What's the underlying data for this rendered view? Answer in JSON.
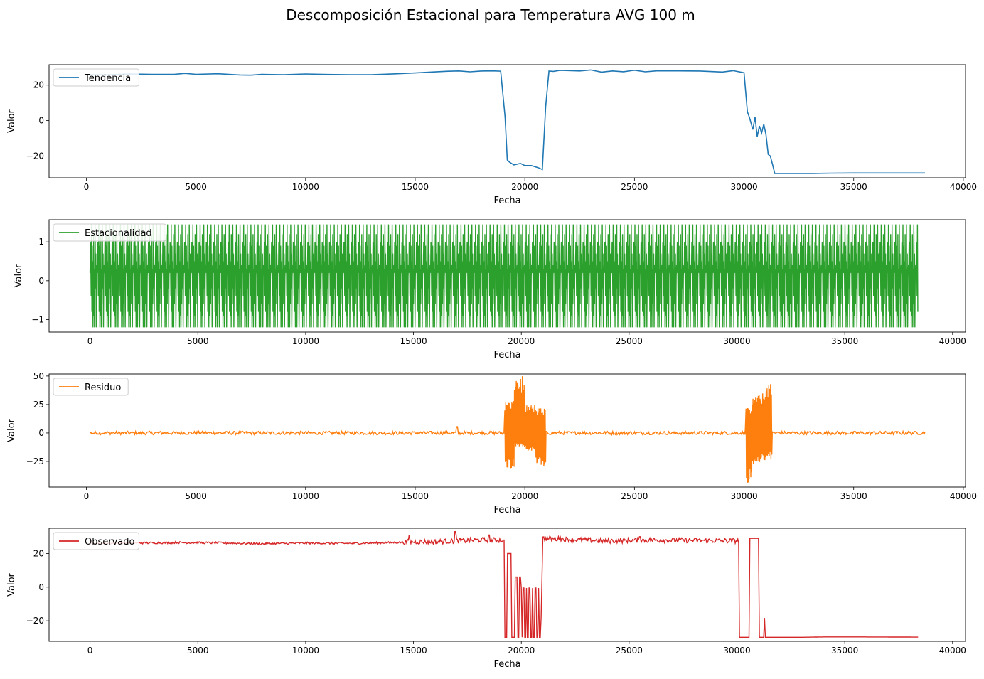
{
  "figure": {
    "title": "Descomposición Estacional para Temperatura AVG 100 m"
  },
  "chart_data": [
    {
      "type": "line",
      "legend": "Tendencia",
      "color": "#1f77b4",
      "kind": "trend",
      "xlabel": "Fecha",
      "ylabel": "Valor",
      "xlim": [
        -1700,
        40100
      ],
      "ylim": [
        -32.2,
        31.5
      ],
      "xticks": [
        0,
        5000,
        10000,
        15000,
        20000,
        25000,
        30000,
        35000,
        40000
      ],
      "xtick_labels": [
        "0",
        "5000",
        "10000",
        "15000",
        "20000",
        "25000",
        "30000",
        "35000",
        "40000"
      ],
      "yticks": [
        20,
        0,
        -20
      ],
      "ytick_labels": [
        "20",
        "0",
        "−20"
      ],
      "legend_position": "upper left",
      "x": [
        168,
        1000,
        2000,
        3000,
        4000,
        4500,
        5000,
        6000,
        7000,
        7500,
        8000,
        9000,
        10000,
        11000,
        12000,
        13000,
        14000,
        15000,
        16000,
        16500,
        17000,
        17500,
        18000,
        18500,
        18900,
        19100,
        19200,
        19300,
        19500,
        19800,
        20000,
        20300,
        20600,
        20800,
        20950,
        21100,
        21300,
        21600,
        22000,
        22500,
        23000,
        23500,
        24000,
        24500,
        25000,
        25500,
        26000,
        27000,
        28000,
        29000,
        29500,
        30000,
        30150,
        30250,
        30400,
        30500,
        30600,
        30700,
        30800,
        30900,
        31000,
        31100,
        31200,
        31300,
        31400,
        32000,
        33000,
        34000,
        35000,
        36000,
        37000,
        38250
      ],
      "y": [
        25.8,
        26.0,
        26.2,
        25.8,
        26.0,
        26.5,
        26.3,
        26.2,
        25.6,
        25.4,
        25.9,
        26.0,
        26.1,
        26.2,
        25.8,
        26.0,
        26.5,
        26.7,
        27.3,
        27.6,
        28.2,
        27.5,
        27.8,
        28.1,
        28.0,
        2.0,
        -22.0,
        -24.0,
        -25.5,
        -24.0,
        -25.2,
        -25.8,
        -26.0,
        -27.0,
        8.0,
        28.0,
        27.8,
        28.3,
        27.9,
        28.0,
        28.4,
        27.5,
        28.0,
        27.3,
        28.2,
        27.6,
        28.0,
        27.8,
        27.8,
        27.6,
        28.1,
        27.2,
        5.0,
        1.5,
        -5.0,
        2.0,
        -9.0,
        -3.0,
        -7.0,
        -2.0,
        -8.0,
        -19.0,
        -20.0,
        -25.0,
        -29.8,
        -29.8,
        -29.8,
        -29.6,
        -29.5,
        -29.5,
        -29.5,
        -29.5
      ]
    },
    {
      "type": "line",
      "legend": "Estacionalidad",
      "color": "#2ca02c",
      "kind": "seasonal",
      "xlabel": "Fecha",
      "ylabel": "Valor",
      "xlim": [
        -1900,
        40600
      ],
      "ylim": [
        -1.32,
        1.57
      ],
      "xticks": [
        0,
        5000,
        10000,
        15000,
        20000,
        25000,
        30000,
        35000,
        40000
      ],
      "xtick_labels": [
        "0",
        "5000",
        "10000",
        "15000",
        "20000",
        "25000",
        "30000",
        "35000",
        "40000"
      ],
      "yticks": [
        1,
        0,
        -1
      ],
      "ytick_labels": [
        "1",
        "0",
        "−1"
      ],
      "legend_position": "upper left",
      "x_start": 0,
      "x_end": 38400,
      "period": 336,
      "cycle_values": [
        0.2,
        1.0,
        0.6,
        -0.4,
        1.45,
        -0.8,
        0.9,
        -1.2,
        0.5,
        -0.9,
        1.2,
        -1.2,
        0.3,
        -0.6,
        1.45,
        -0.2,
        0.7,
        -1.2,
        0.1,
        0.4
      ]
    },
    {
      "type": "line",
      "legend": "Residuo",
      "color": "#ff7f0e",
      "kind": "residual",
      "xlabel": "Fecha",
      "ylabel": "Valor",
      "xlim": [
        -1700,
        40100
      ],
      "ylim": [
        -47.5,
        51.8
      ],
      "xticks": [
        0,
        5000,
        10000,
        15000,
        20000,
        25000,
        30000,
        35000,
        40000
      ],
      "xtick_labels": [
        "0",
        "5000",
        "10000",
        "15000",
        "20000",
        "25000",
        "30000",
        "35000",
        "40000"
      ],
      "yticks": [
        50,
        25,
        0,
        -25
      ],
      "ytick_labels": [
        "50",
        "25",
        "0",
        "−25"
      ],
      "legend_position": "upper left",
      "x_start": 168,
      "x_end": 38250,
      "baseline_amplitude": 1.5,
      "disturbances": [
        {
          "x_start": 19050,
          "x_end": 20950,
          "high": [
            28,
            50,
            25,
            22
          ],
          "low": [
            -32,
            -12,
            -16,
            -30
          ]
        },
        {
          "x_start": 30050,
          "x_end": 31250,
          "high": [
            22,
            33,
            35,
            44
          ],
          "low": [
            -44,
            -28,
            -26,
            -24
          ]
        }
      ],
      "spikes": [
        {
          "x": 16900,
          "y": 5.5
        }
      ]
    },
    {
      "type": "line",
      "legend": "Observado",
      "color": "#d62728",
      "kind": "observed",
      "xlabel": "Fecha",
      "ylabel": "Valor",
      "xlim": [
        -1900,
        40600
      ],
      "ylim": [
        -32.2,
        35.0
      ],
      "xticks": [
        0,
        5000,
        10000,
        15000,
        20000,
        25000,
        30000,
        35000,
        40000
      ],
      "xtick_labels": [
        "0",
        "5000",
        "10000",
        "15000",
        "20000",
        "25000",
        "30000",
        "35000",
        "40000"
      ],
      "yticks": [
        20,
        0,
        -20
      ],
      "ytick_labels": [
        "20",
        "0",
        "−20"
      ],
      "legend_position": "upper left",
      "x": [
        0,
        2000,
        4000,
        6000,
        8000,
        10000,
        12000,
        14000,
        15000,
        16000,
        17000,
        18000,
        19000,
        19150,
        19200,
        19500,
        19800,
        20000,
        20500,
        20900,
        21000,
        22000,
        24000,
        26000,
        28000,
        30000,
        30100,
        31200,
        31300,
        33000,
        34000,
        36000,
        38400
      ],
      "y": [
        26.0,
        26.2,
        26.5,
        26.3,
        25.8,
        26.2,
        26.0,
        26.5,
        27.0,
        27.0,
        27.5,
        28.0,
        28.0,
        28.0,
        -29.8,
        -29.8,
        -29.8,
        -29.8,
        -29.8,
        -29.8,
        29.0,
        28.5,
        27.5,
        28.0,
        27.8,
        27.5,
        27.5,
        27.5,
        -29.8,
        -29.8,
        -29.6,
        -29.6,
        -29.7
      ],
      "drops": [
        {
          "x_start": 19150,
          "x_end": 19250,
          "high": 28,
          "low": -29.8,
          "n": 4
        },
        {
          "x_start": 19250,
          "x_end": 19700,
          "high": 20,
          "low": -29.8,
          "n": 10
        },
        {
          "x_start": 19700,
          "x_end": 20000,
          "high": 6,
          "low": -29.8,
          "n": 6
        },
        {
          "x_start": 20000,
          "x_end": 20900,
          "high": -0.5,
          "low": -29.8,
          "n": 16
        },
        {
          "x_start": 30100,
          "x_end": 31250,
          "high": 29,
          "low": -29.8,
          "n": 30
        }
      ],
      "spikes": [
        {
          "x": 16950,
          "y": 33.0
        },
        {
          "x": 14800,
          "y": 31.0
        },
        {
          "x": 18500,
          "y": 31.0
        },
        {
          "x": 21800,
          "y": 30.5
        },
        {
          "x": 25500,
          "y": 30.0
        }
      ]
    }
  ]
}
